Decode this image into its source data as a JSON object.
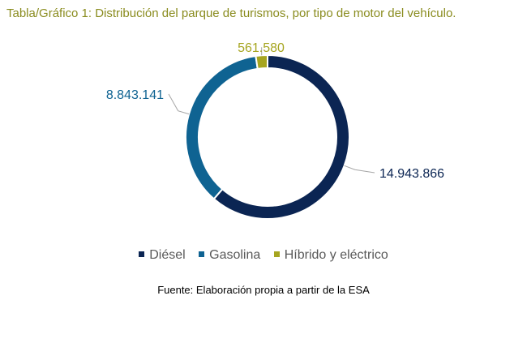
{
  "chart_data": {
    "type": "pie",
    "title": "Tabla/Gráfico 1: Distribución del parque de turismos, por tipo de motor del vehículo.",
    "donut": true,
    "series": [
      {
        "name": "Diésel",
        "value": 14943866,
        "label": "14.943.866",
        "color": "#0b2553"
      },
      {
        "name": "Gasolina",
        "value": 8843141,
        "label": "8.843.141",
        "color": "#0f6392"
      },
      {
        "name": "Híbrido y eléctrico",
        "value": 561580,
        "label": "561.580",
        "color": "#a6a520"
      }
    ],
    "legend_position": "bottom"
  },
  "source_note": "Fuente: Elaboración propia a partir de la ESA",
  "colors": {
    "title": "#8a8c1f"
  }
}
